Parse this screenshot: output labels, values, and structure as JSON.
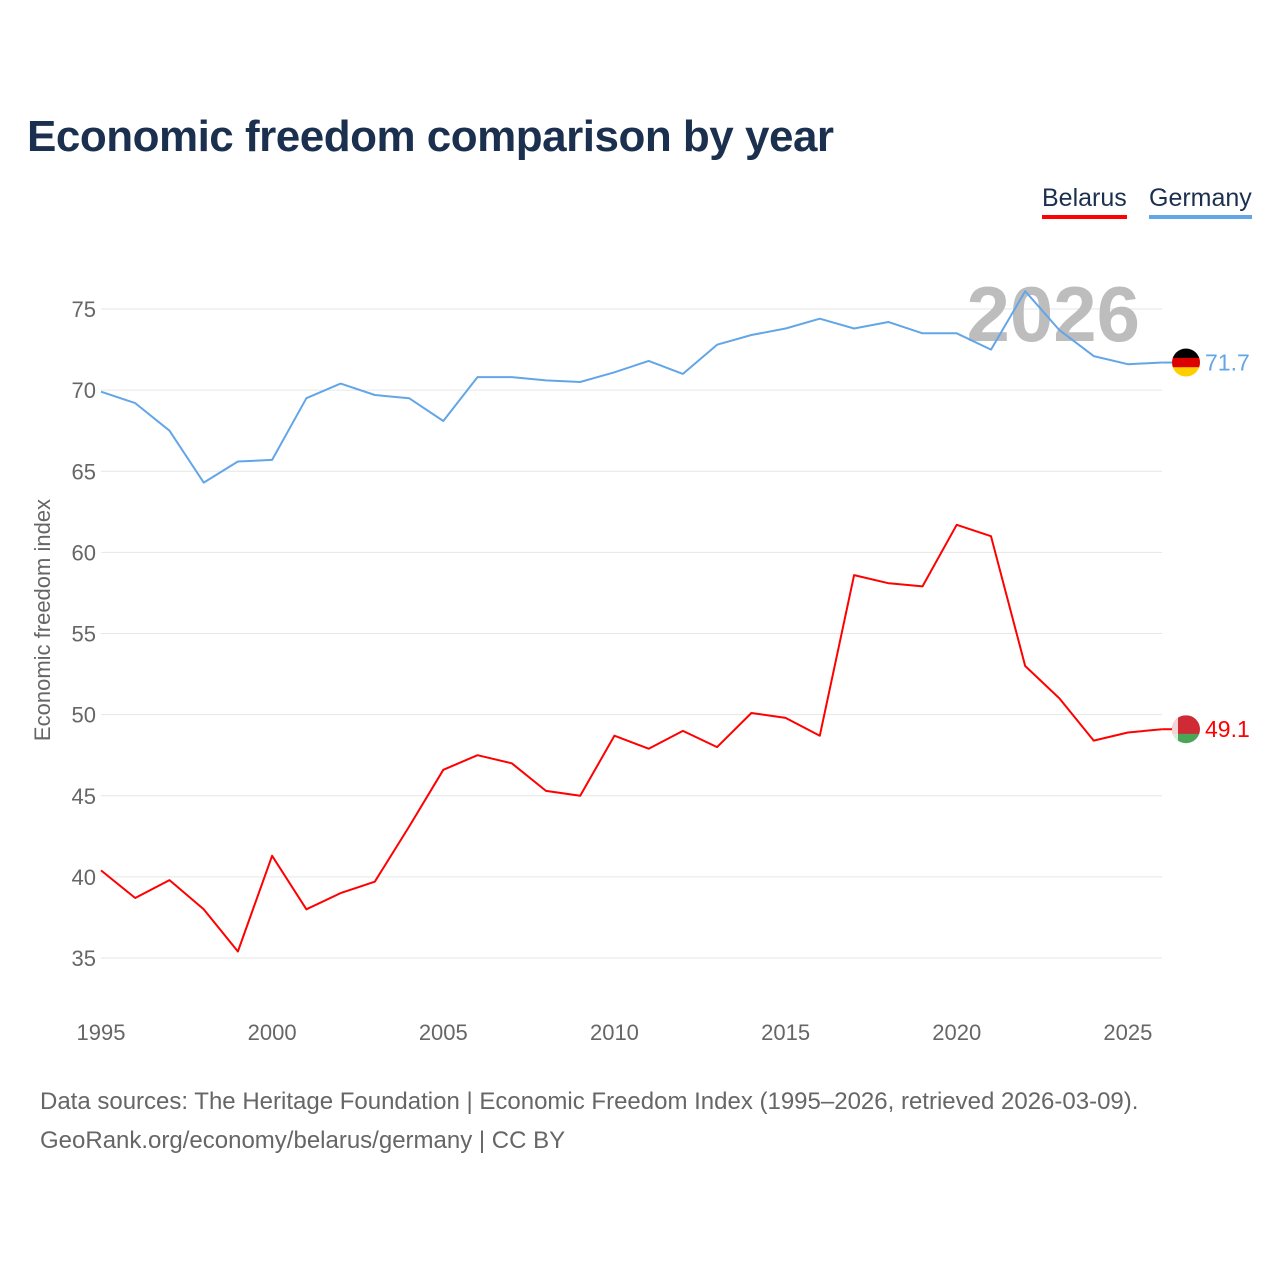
{
  "title": "Economic freedom comparison by year",
  "footer": {
    "line1": "Data sources: The Heritage Foundation | Economic Freedom Index (1995–2026, retrieved 2026-03-09).",
    "line2": "GeoRank.org/economy/belarus/germany | CC BY"
  },
  "chart_data": {
    "type": "line",
    "title": "Economic freedom comparison by year",
    "xlabel": "",
    "ylabel": "Economic freedom index",
    "watermark_year": "2026",
    "xlim": [
      1995,
      2026
    ],
    "ylim": [
      32,
      78
    ],
    "x_ticks": [
      1995,
      2000,
      2005,
      2010,
      2015,
      2020,
      2025
    ],
    "y_ticks": [
      35,
      40,
      45,
      50,
      55,
      60,
      65,
      70,
      75
    ],
    "grid": true,
    "legend_placement": "top-right",
    "x": [
      1995,
      1996,
      1997,
      1998,
      1999,
      2000,
      2001,
      2002,
      2003,
      2004,
      2005,
      2006,
      2007,
      2008,
      2009,
      2010,
      2011,
      2012,
      2013,
      2014,
      2015,
      2016,
      2017,
      2018,
      2019,
      2020,
      2021,
      2022,
      2023,
      2024,
      2025,
      2026
    ],
    "series": [
      {
        "name": "Belarus",
        "color": "#ff0000",
        "end_label": "49.1",
        "flag": "belarus-flag",
        "values": [
          40.4,
          38.7,
          39.8,
          38.0,
          35.4,
          41.3,
          38.0,
          39.0,
          39.7,
          43.1,
          46.6,
          47.5,
          47.0,
          45.3,
          45.0,
          48.7,
          47.9,
          49.0,
          48.0,
          50.1,
          49.8,
          48.7,
          58.6,
          58.1,
          57.9,
          61.7,
          61.0,
          53.0,
          51.0,
          48.4,
          48.9,
          49.1
        ]
      },
      {
        "name": "Germany",
        "color": "#63a6e8",
        "end_label": "71.7",
        "flag": "germany-flag",
        "values": [
          69.9,
          69.2,
          67.5,
          64.3,
          65.6,
          65.7,
          69.5,
          70.4,
          69.7,
          69.5,
          68.1,
          70.8,
          70.8,
          70.6,
          70.5,
          71.1,
          71.8,
          71.0,
          72.8,
          73.4,
          73.8,
          74.4,
          73.8,
          74.2,
          73.5,
          73.5,
          72.5,
          76.1,
          73.7,
          72.1,
          71.6,
          71.7
        ]
      }
    ]
  }
}
